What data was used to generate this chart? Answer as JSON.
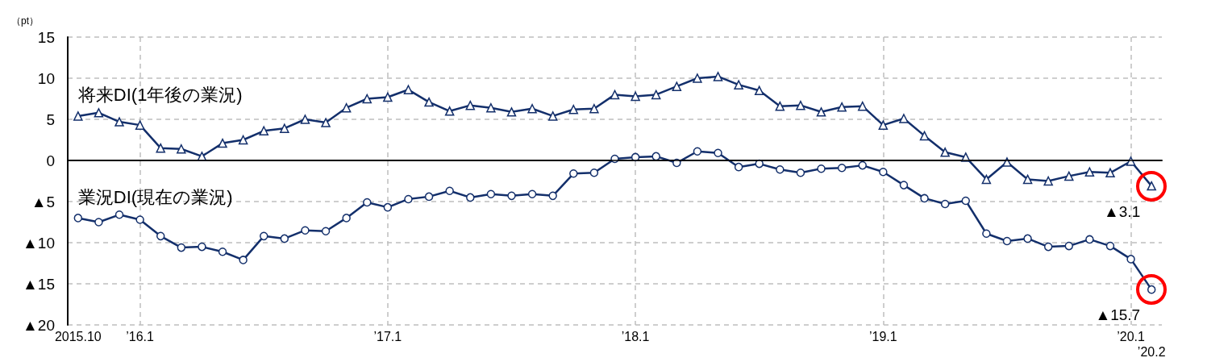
{
  "chart_data": {
    "type": "line",
    "ylabel": "（pt）",
    "categories": [
      "2015.10",
      null,
      null,
      "’16.1",
      null,
      null,
      null,
      null,
      null,
      null,
      null,
      null,
      null,
      null,
      null,
      "’17.1",
      null,
      null,
      null,
      null,
      null,
      null,
      null,
      null,
      null,
      null,
      null,
      "’18.1",
      null,
      null,
      null,
      null,
      null,
      null,
      null,
      null,
      null,
      null,
      null,
      "’19.1",
      null,
      null,
      null,
      null,
      null,
      null,
      null,
      null,
      null,
      null,
      null,
      "’20.1",
      "’20.2"
    ],
    "series": [
      {
        "name": "将来DI(1年後の業況)",
        "color": "#132f6b",
        "marker": "triangle",
        "values": [
          5.4,
          5.8,
          4.7,
          4.3,
          1.5,
          1.4,
          0.5,
          2.1,
          2.5,
          3.6,
          3.9,
          5.0,
          4.6,
          6.4,
          7.5,
          7.7,
          8.6,
          7.1,
          6.0,
          6.7,
          6.4,
          5.9,
          6.3,
          5.4,
          6.2,
          6.3,
          8.0,
          7.8,
          8.0,
          9.0,
          10.0,
          10.2,
          9.2,
          8.5,
          6.6,
          6.7,
          5.9,
          6.5,
          6.6,
          4.3,
          5.1,
          3.0,
          1.0,
          0.4,
          -2.3,
          -0.2,
          -2.3,
          -2.5,
          -1.9,
          -1.4,
          -1.5,
          -0.1,
          -3.1
        ]
      },
      {
        "name": "業況DI(現在の業況)",
        "color": "#132f6b",
        "marker": "circle",
        "values": [
          -7.0,
          -7.5,
          -6.6,
          -7.2,
          -9.2,
          -10.6,
          -10.5,
          -11.1,
          -12.1,
          -9.2,
          -9.5,
          -8.5,
          -8.6,
          -7.0,
          -5.1,
          -5.7,
          -4.7,
          -4.4,
          -3.7,
          -4.5,
          -4.1,
          -4.3,
          -4.1,
          -4.3,
          -1.6,
          -1.5,
          0.2,
          0.4,
          0.5,
          -0.3,
          1.1,
          0.9,
          -0.8,
          -0.4,
          -1.1,
          -1.5,
          -1.0,
          -0.9,
          -0.6,
          -1.4,
          -3.0,
          -4.6,
          -5.3,
          -4.9,
          -8.9,
          -9.8,
          -9.5,
          -10.5,
          -10.4,
          -9.6,
          -10.4,
          -12.0,
          -15.7
        ]
      }
    ],
    "ylim": [
      -20,
      15
    ],
    "yticks": [
      {
        "value": -20,
        "label": "▲20"
      },
      {
        "value": -15,
        "label": "▲15"
      },
      {
        "value": -10,
        "label": "▲10"
      },
      {
        "value": -5,
        "label": "▲5"
      },
      0,
      5,
      10,
      15
    ],
    "ref_lines": [
      {
        "axis": "y",
        "value": 0,
        "color": "#000000"
      }
    ],
    "annotations": [
      {
        "text": "▲3.1",
        "x": "’20.2",
        "y": -3.1
      },
      {
        "text": "▲15.7",
        "x": "’20.2",
        "y": -15.7
      }
    ],
    "grid": true
  }
}
